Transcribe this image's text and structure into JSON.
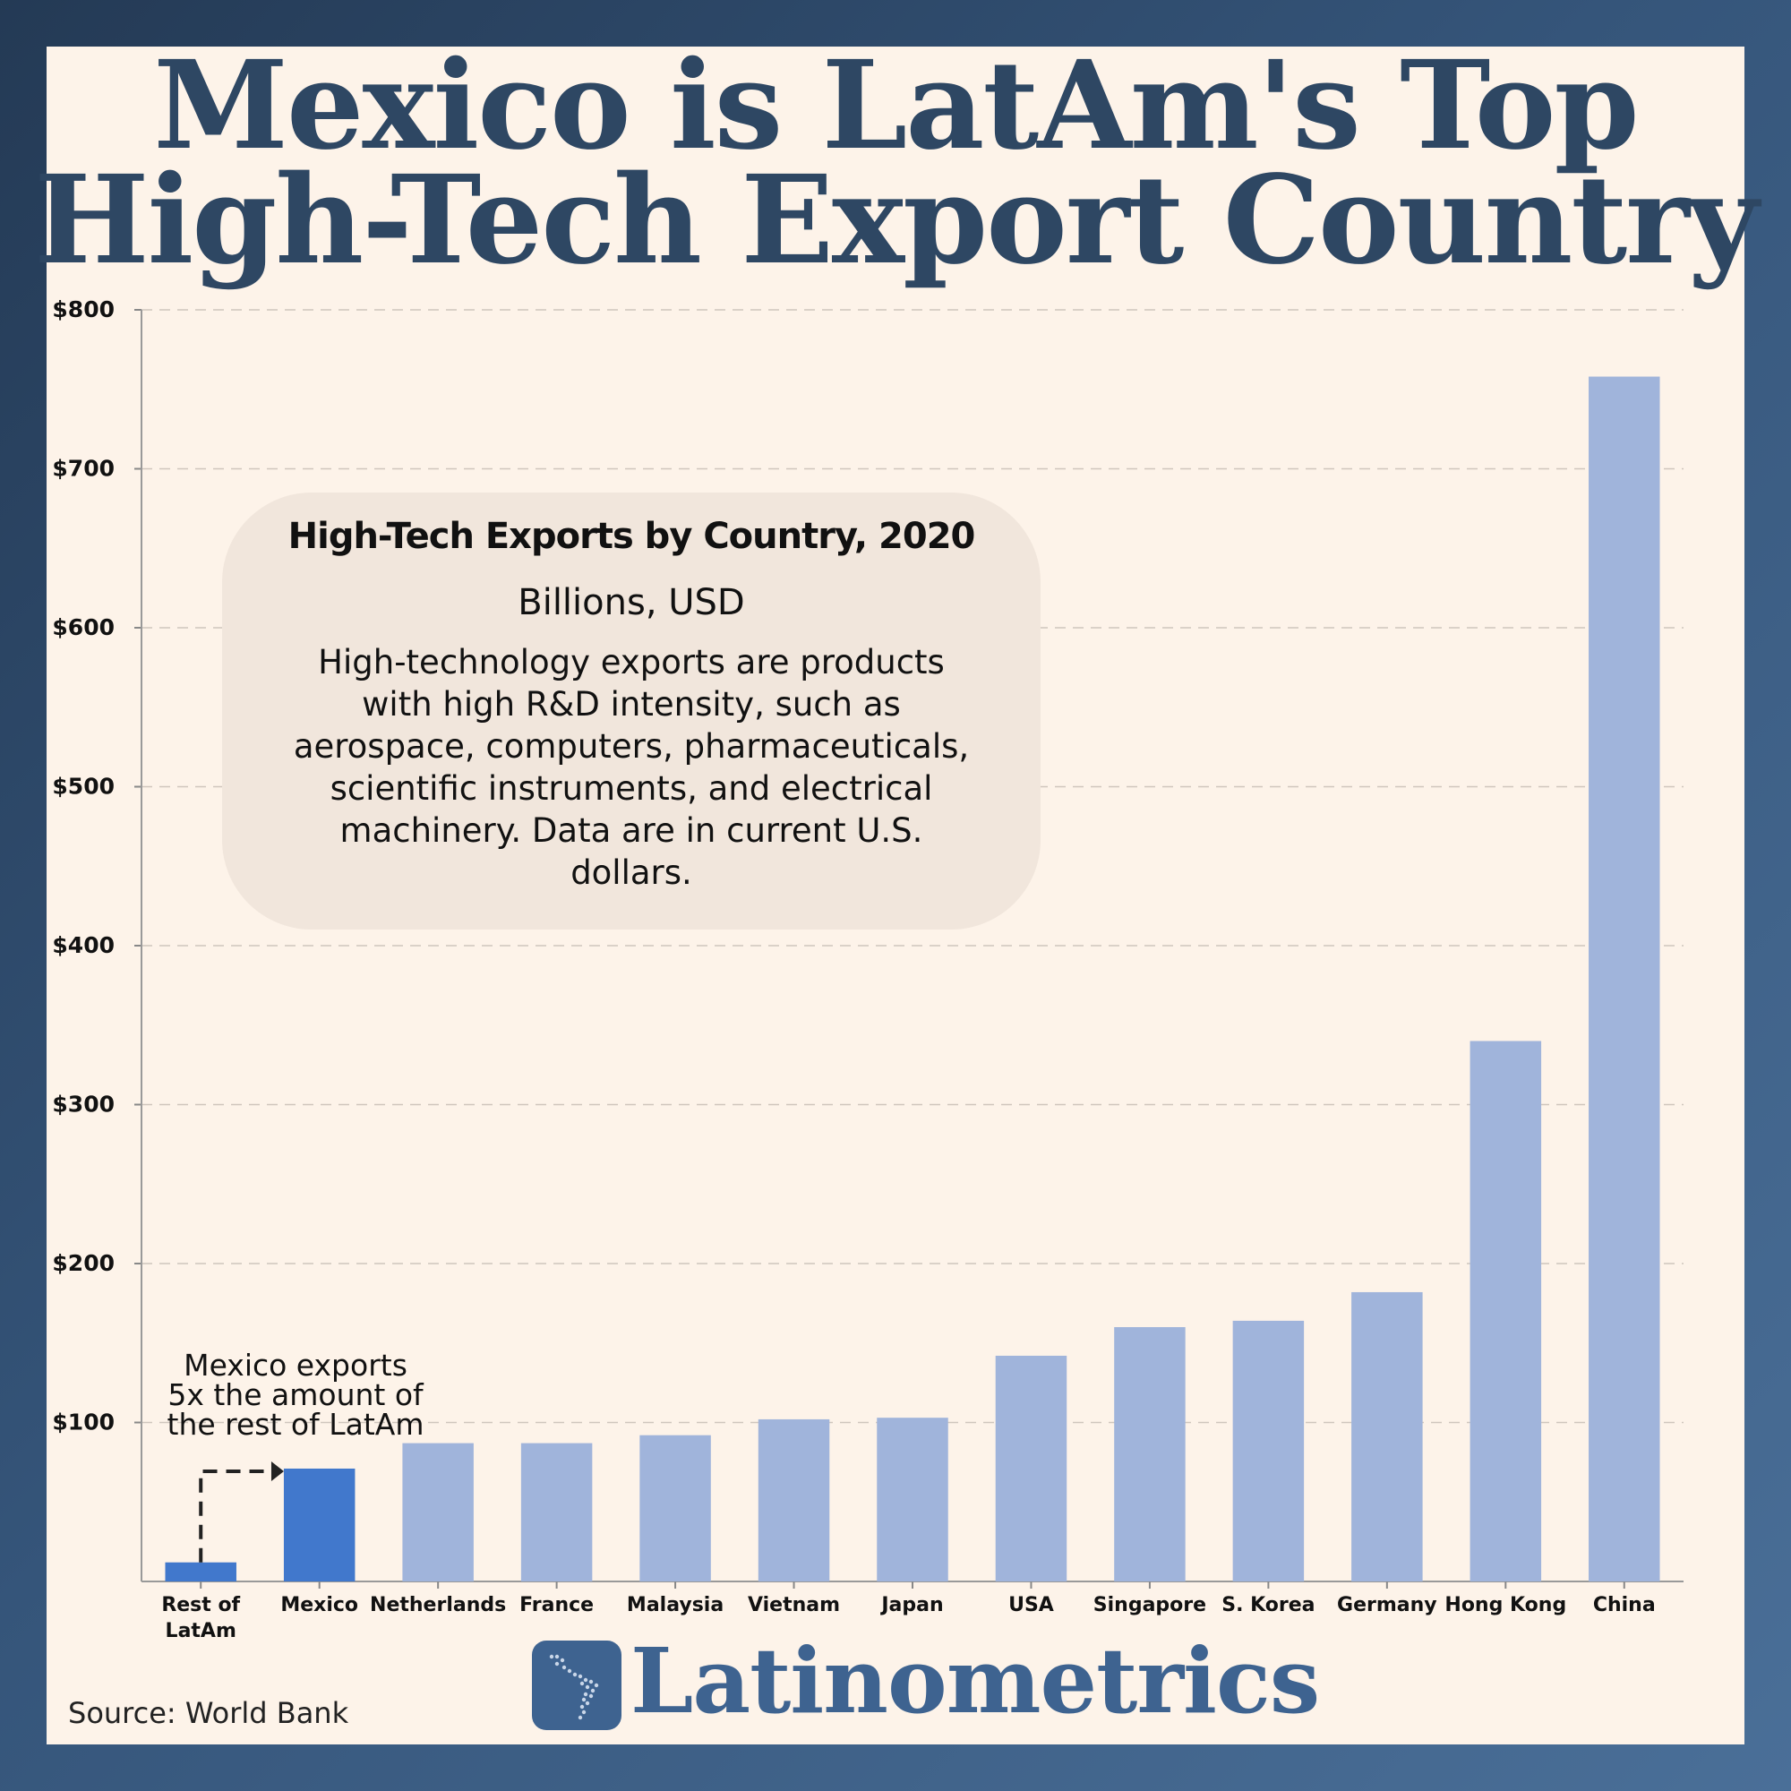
{
  "title_line1": "Mexico is LatAm's Top",
  "title_line2": "High-Tech Export Country",
  "info": {
    "title": "High-Tech Exports by Country, 2020",
    "units": "Billions, USD",
    "description": "High-technology exports are products with high R&D intensity, such as aerospace, computers, pharmaceuticals, scientific instruments, and electrical machinery. Data are in current U.S. dollars."
  },
  "annotation": {
    "line1": "Mexico exports",
    "line2": "5x the amount of",
    "line3": "the rest of LatAm"
  },
  "source": "Source: World Bank",
  "brand": "Latinometrics",
  "colors": {
    "highlight": "#4178cc",
    "default_bar": "#a0b4db",
    "title": "#2e4763",
    "brand": "#3e6390",
    "panel": "#fdf3e9"
  },
  "chart_data": {
    "type": "bar",
    "title": "High-Tech Exports by Country, 2020",
    "ylabel": "Billions, USD",
    "categories": [
      "Rest of LatAm",
      "Mexico",
      "Netherlands",
      "France",
      "Malaysia",
      "Vietnam",
      "Japan",
      "USA",
      "Singapore",
      "S. Korea",
      "Germany",
      "Hong Kong",
      "China"
    ],
    "category_lines": [
      [
        "Rest of",
        "LatAm"
      ],
      [
        "Mexico"
      ],
      [
        "Netherlands"
      ],
      [
        "France"
      ],
      [
        "Malaysia"
      ],
      [
        "Vietnam"
      ],
      [
        "Japan"
      ],
      [
        "USA"
      ],
      [
        "Singapore"
      ],
      [
        "S. Korea"
      ],
      [
        "Germany"
      ],
      [
        "Hong Kong"
      ],
      [
        "China"
      ]
    ],
    "values": [
      12,
      71,
      87,
      87,
      92,
      102,
      103,
      142,
      160,
      164,
      182,
      340,
      758
    ],
    "highlighted": [
      "Rest of LatAm",
      "Mexico"
    ],
    "ylim": [
      0,
      800
    ],
    "yticks": [
      100,
      200,
      300,
      400,
      500,
      600,
      700,
      800
    ],
    "ytick_labels": [
      "$100",
      "$200",
      "$300",
      "$400",
      "$500",
      "$600",
      "$700",
      "$800"
    ],
    "grid": "horizontal dashed"
  }
}
